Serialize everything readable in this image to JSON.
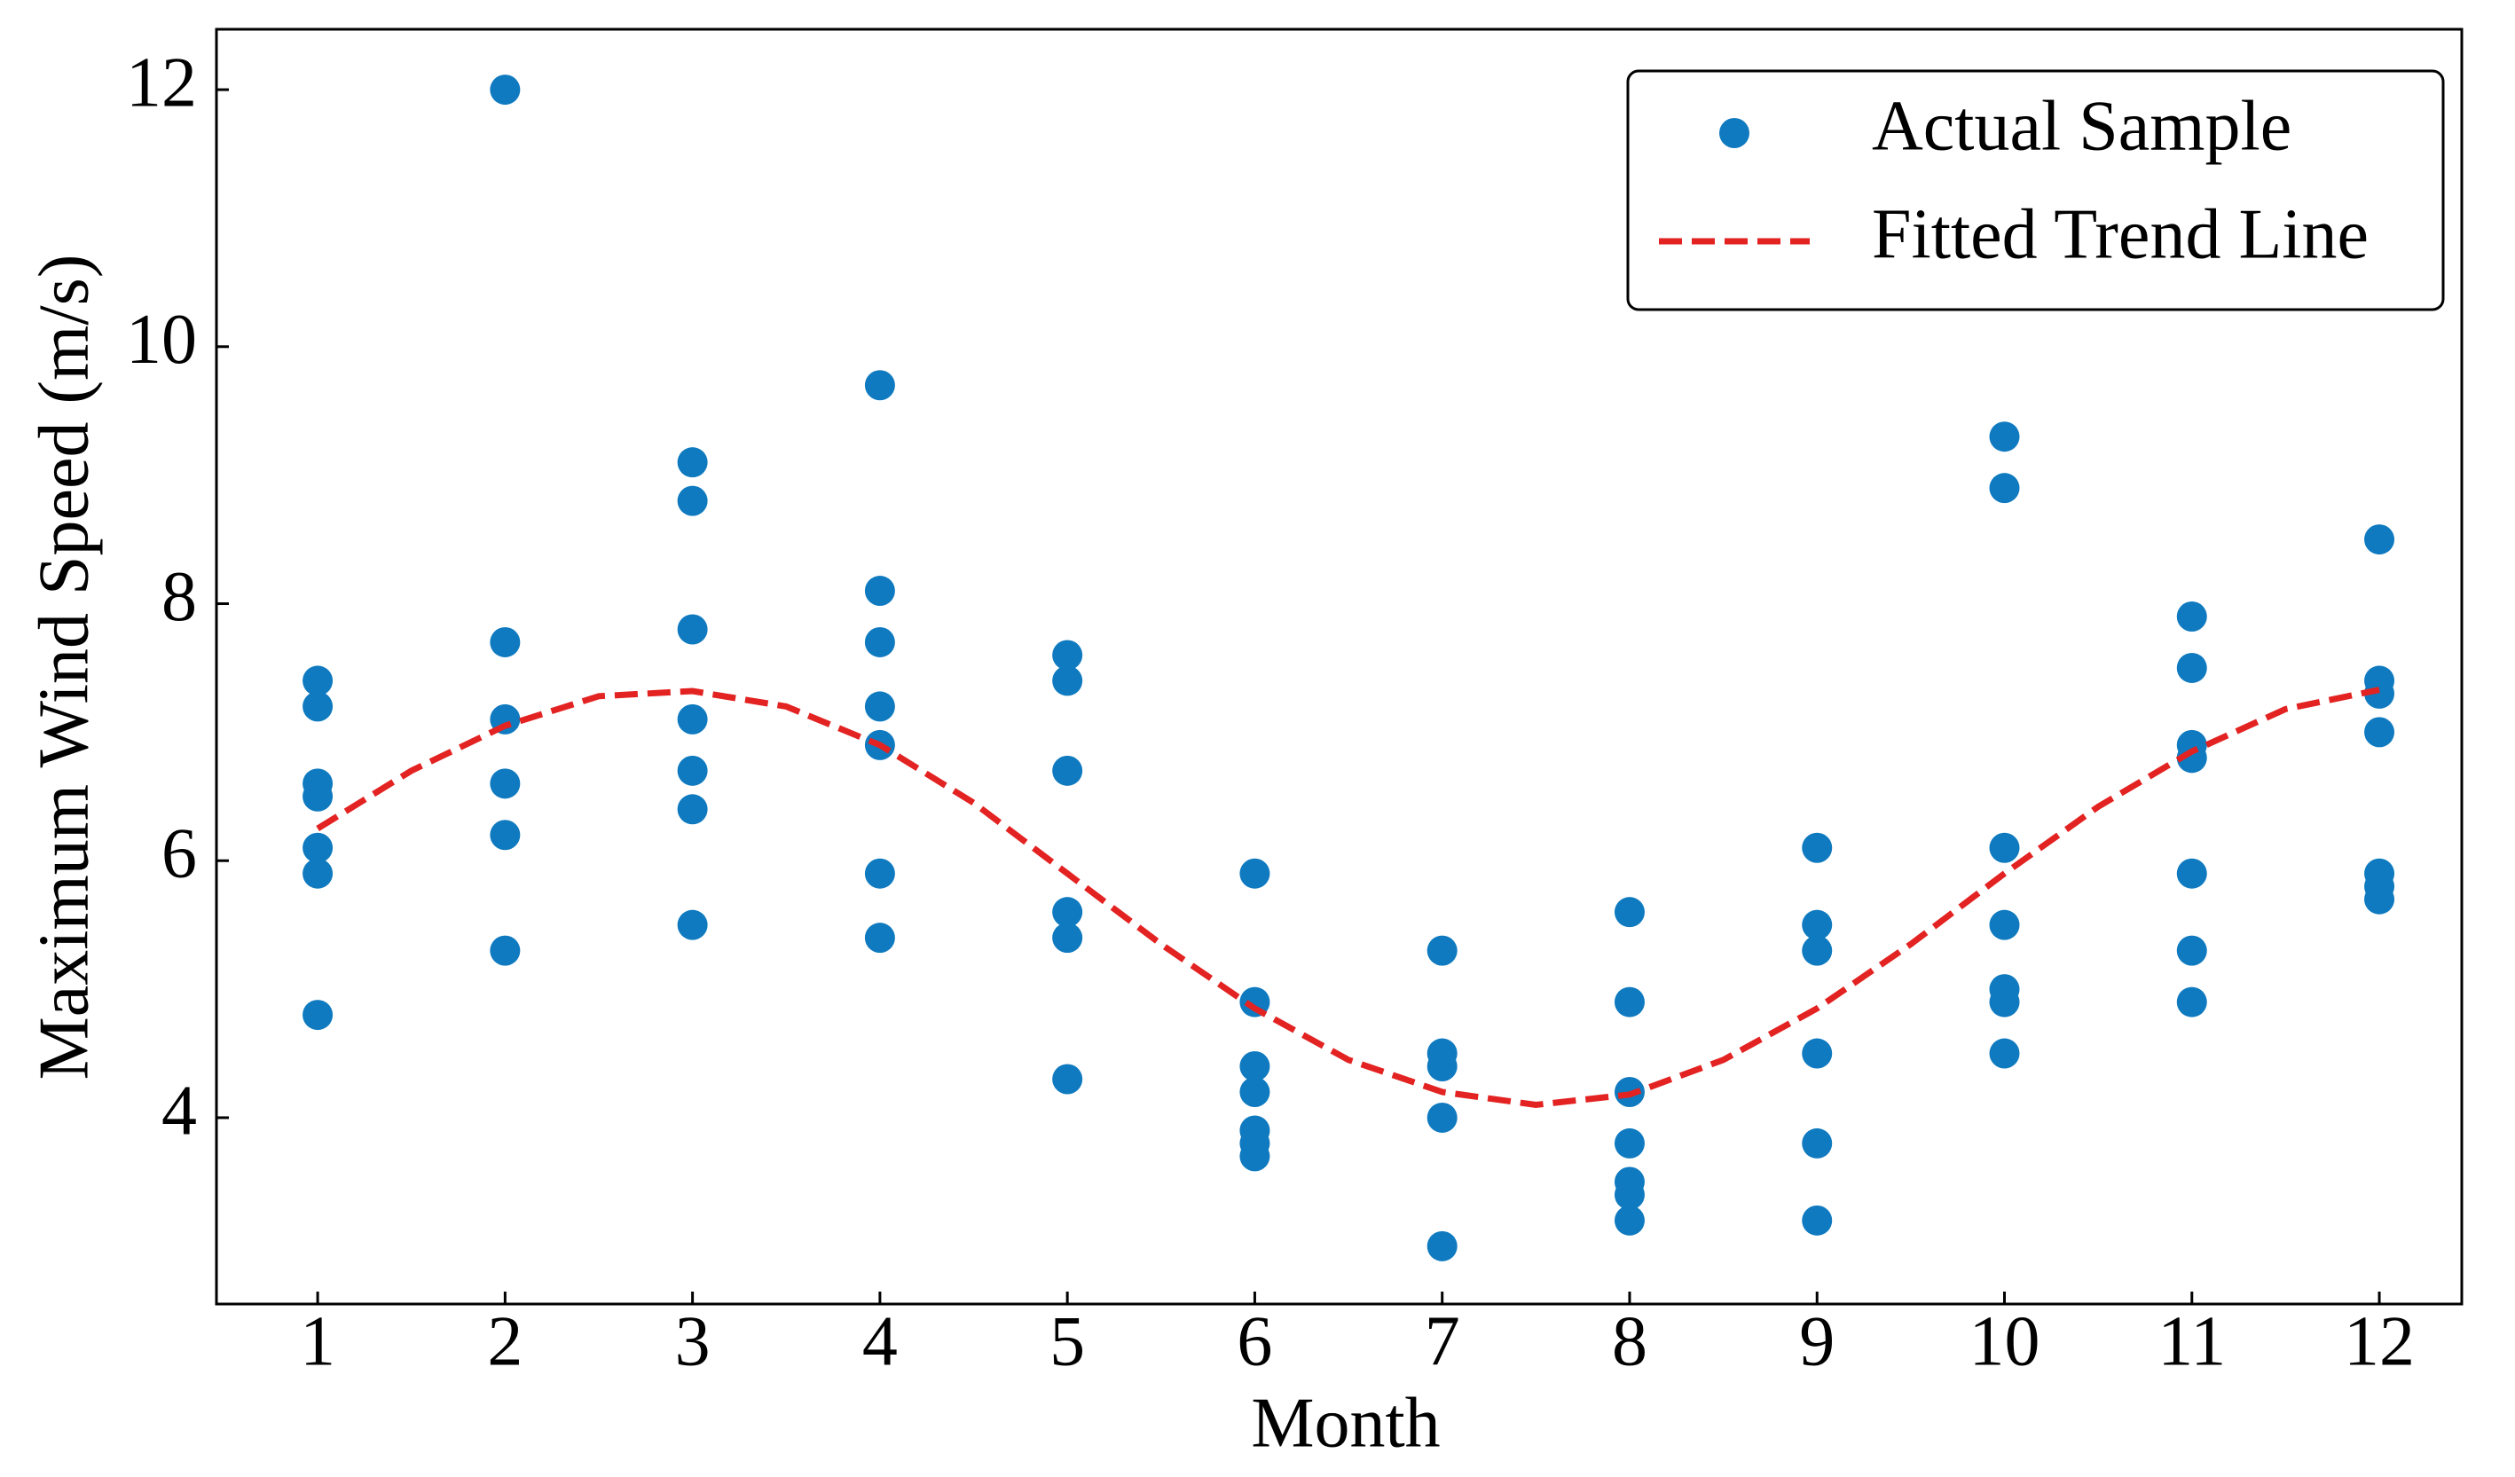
{
  "chart_data": {
    "type": "scatter",
    "xlabel": "Month",
    "ylabel": "Maximum Wind Speed (m/s)",
    "xlim": [
      0.46,
      12.44
    ],
    "ylim": [
      2.55,
      12.47
    ],
    "xticks": [
      1,
      2,
      3,
      4,
      5,
      6,
      7,
      8,
      9,
      10,
      11,
      12
    ],
    "yticks": [
      4,
      6,
      8,
      10,
      12
    ],
    "legend": "upper right",
    "series": [
      {
        "name": "Actual Sample",
        "type": "scatter",
        "color": "#0f7abf",
        "x": [
          1,
          1,
          1,
          1,
          1,
          1,
          1,
          2,
          2,
          2,
          2,
          2,
          2,
          3,
          3,
          3,
          3,
          3,
          3,
          3,
          4,
          4,
          4,
          4,
          4,
          4,
          4,
          5,
          5,
          5,
          5,
          5,
          5,
          6,
          6,
          6,
          6,
          6,
          6,
          6,
          7,
          7,
          7,
          7,
          7,
          8,
          8,
          8,
          8,
          8,
          8,
          8,
          9,
          9,
          9,
          9,
          9,
          9,
          10,
          10,
          10,
          10,
          10,
          10,
          10,
          11,
          11,
          11,
          11,
          11,
          11,
          11,
          12,
          12,
          12,
          12,
          12,
          12,
          12
        ],
        "y": [
          7.4,
          7.2,
          6.6,
          6.5,
          6.1,
          5.9,
          4.8,
          12,
          7.7,
          7.1,
          6.6,
          6.2,
          5.3,
          9.1,
          8.8,
          7.8,
          7.1,
          6.7,
          6.4,
          5.5,
          9.7,
          8.1,
          7.7,
          7.2,
          6.9,
          5.9,
          5.4,
          7.6,
          7.4,
          6.7,
          5.6,
          5.4,
          4.3,
          5.9,
          4.9,
          4.4,
          4.2,
          3.9,
          3.8,
          3.7,
          5.3,
          4.5,
          4.4,
          4.0,
          3.0,
          5.6,
          4.9,
          4.2,
          3.8,
          3.5,
          3.4,
          3.2,
          6.1,
          5.5,
          5.3,
          4.5,
          3.8,
          3.2,
          9.3,
          8.9,
          6.1,
          5.5,
          5.0,
          4.9,
          4.5,
          7.9,
          7.5,
          6.9,
          6.8,
          5.9,
          5.3,
          4.9,
          8.5,
          7.4,
          7.3,
          7.0,
          5.9,
          5.8,
          5.7
        ]
      },
      {
        "name": "Fitted Trend Line",
        "type": "line",
        "color": "#e32222",
        "dashed": true,
        "x": [
          1,
          1.5,
          2,
          2.5,
          3,
          3.5,
          4,
          4.5,
          5,
          5.5,
          6,
          6.5,
          7,
          7.5,
          8,
          8.5,
          9,
          9.5,
          10,
          10.5,
          11,
          11.5,
          12
        ],
        "y": [
          6.25,
          6.7,
          7.05,
          7.28,
          7.32,
          7.2,
          6.9,
          6.45,
          5.9,
          5.35,
          4.85,
          4.45,
          4.2,
          4.1,
          4.18,
          4.45,
          4.85,
          5.35,
          5.9,
          6.42,
          6.85,
          7.18,
          7.33
        ]
      }
    ]
  }
}
